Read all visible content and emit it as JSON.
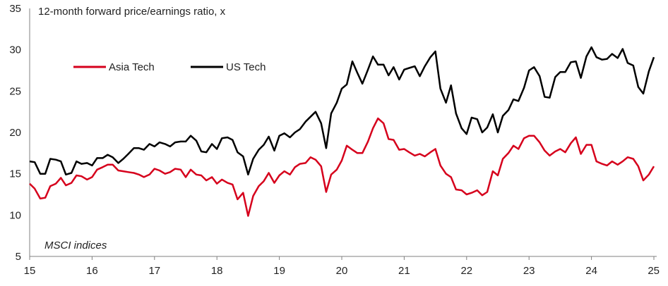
{
  "chart_data": {
    "type": "line",
    "title": "",
    "ylabel": "12-month forward price/earnings ratio, x",
    "xlabel": "",
    "note": "MSCI indices",
    "ylim": [
      5,
      35
    ],
    "yticks": [
      5,
      10,
      15,
      20,
      25,
      30,
      35
    ],
    "xlim": [
      2015,
      2025
    ],
    "xticks": [
      2015,
      2016,
      2017,
      2018,
      2019,
      2020,
      2021,
      2022,
      2023,
      2024,
      2025
    ],
    "xtick_labels": [
      "15",
      "16",
      "17",
      "18",
      "19",
      "20",
      "21",
      "22",
      "23",
      "24",
      "25"
    ],
    "grid": false,
    "legend_position": "top-left",
    "series": [
      {
        "name": "Asia Tech",
        "color": "#d6001c",
        "points": [
          [
            2015.0,
            13.8
          ],
          [
            2015.08,
            13.2
          ],
          [
            2015.17,
            12.0
          ],
          [
            2015.25,
            12.1
          ],
          [
            2015.33,
            13.5
          ],
          [
            2015.42,
            13.8
          ],
          [
            2015.5,
            14.5
          ],
          [
            2015.58,
            13.6
          ],
          [
            2015.67,
            13.9
          ],
          [
            2015.75,
            14.8
          ],
          [
            2015.83,
            14.7
          ],
          [
            2015.92,
            14.3
          ],
          [
            2016.0,
            14.6
          ],
          [
            2016.08,
            15.5
          ],
          [
            2016.17,
            15.8
          ],
          [
            2016.25,
            16.1
          ],
          [
            2016.33,
            16.1
          ],
          [
            2016.42,
            15.4
          ],
          [
            2016.5,
            15.3
          ],
          [
            2016.58,
            15.2
          ],
          [
            2016.67,
            15.1
          ],
          [
            2016.75,
            14.9
          ],
          [
            2016.83,
            14.6
          ],
          [
            2016.92,
            14.9
          ],
          [
            2017.0,
            15.6
          ],
          [
            2017.08,
            15.4
          ],
          [
            2017.17,
            15.0
          ],
          [
            2017.25,
            15.2
          ],
          [
            2017.33,
            15.6
          ],
          [
            2017.42,
            15.5
          ],
          [
            2017.5,
            14.6
          ],
          [
            2017.58,
            15.5
          ],
          [
            2017.67,
            14.9
          ],
          [
            2017.75,
            14.8
          ],
          [
            2017.83,
            14.2
          ],
          [
            2017.92,
            14.6
          ],
          [
            2018.0,
            13.8
          ],
          [
            2018.08,
            14.3
          ],
          [
            2018.17,
            13.9
          ],
          [
            2018.25,
            13.7
          ],
          [
            2018.33,
            11.9
          ],
          [
            2018.42,
            12.7
          ],
          [
            2018.5,
            9.9
          ],
          [
            2018.58,
            12.3
          ],
          [
            2018.67,
            13.5
          ],
          [
            2018.75,
            14.1
          ],
          [
            2018.83,
            15.1
          ],
          [
            2018.92,
            13.9
          ],
          [
            2019.0,
            14.8
          ],
          [
            2019.08,
            15.3
          ],
          [
            2019.17,
            14.9
          ],
          [
            2019.25,
            15.8
          ],
          [
            2019.33,
            16.2
          ],
          [
            2019.42,
            16.3
          ],
          [
            2019.5,
            17.0
          ],
          [
            2019.58,
            16.7
          ],
          [
            2019.67,
            15.9
          ],
          [
            2019.75,
            12.8
          ],
          [
            2019.83,
            14.9
          ],
          [
            2019.92,
            15.5
          ],
          [
            2020.0,
            16.6
          ],
          [
            2020.08,
            18.4
          ],
          [
            2020.17,
            17.9
          ],
          [
            2020.25,
            17.5
          ],
          [
            2020.33,
            17.5
          ],
          [
            2020.42,
            18.9
          ],
          [
            2020.5,
            20.5
          ],
          [
            2020.58,
            21.7
          ],
          [
            2020.67,
            21.1
          ],
          [
            2020.75,
            19.2
          ],
          [
            2020.83,
            19.1
          ],
          [
            2020.92,
            17.9
          ],
          [
            2021.0,
            18.0
          ],
          [
            2021.08,
            17.6
          ],
          [
            2021.17,
            17.2
          ],
          [
            2021.25,
            17.4
          ],
          [
            2021.33,
            17.1
          ],
          [
            2021.42,
            17.6
          ],
          [
            2021.5,
            18.0
          ],
          [
            2021.58,
            16.0
          ],
          [
            2021.67,
            15.0
          ],
          [
            2021.75,
            14.6
          ],
          [
            2021.83,
            13.1
          ],
          [
            2021.92,
            13.0
          ],
          [
            2022.0,
            12.5
          ],
          [
            2022.08,
            12.7
          ],
          [
            2022.17,
            13.0
          ],
          [
            2022.25,
            12.4
          ],
          [
            2022.33,
            12.8
          ],
          [
            2022.42,
            15.3
          ],
          [
            2022.5,
            14.8
          ],
          [
            2022.58,
            16.8
          ],
          [
            2022.67,
            17.5
          ],
          [
            2022.75,
            18.4
          ],
          [
            2022.83,
            18.0
          ],
          [
            2022.92,
            19.3
          ],
          [
            2023.0,
            19.6
          ],
          [
            2023.08,
            19.6
          ],
          [
            2023.17,
            18.8
          ],
          [
            2023.25,
            17.8
          ],
          [
            2023.33,
            17.2
          ],
          [
            2023.42,
            17.7
          ],
          [
            2023.5,
            18.0
          ],
          [
            2023.58,
            17.6
          ],
          [
            2023.67,
            18.7
          ],
          [
            2023.75,
            19.4
          ],
          [
            2023.83,
            17.4
          ],
          [
            2023.92,
            18.5
          ],
          [
            2024.0,
            18.5
          ],
          [
            2024.08,
            16.5
          ],
          [
            2024.17,
            16.2
          ],
          [
            2024.25,
            16.0
          ],
          [
            2024.33,
            16.5
          ],
          [
            2024.42,
            16.1
          ],
          [
            2024.5,
            16.5
          ],
          [
            2024.58,
            17.0
          ],
          [
            2024.67,
            16.8
          ],
          [
            2024.75,
            15.9
          ],
          [
            2024.83,
            14.2
          ],
          [
            2024.92,
            14.9
          ],
          [
            2025.0,
            15.9
          ]
        ]
      },
      {
        "name": "US Tech",
        "color": "#000000",
        "points": [
          [
            2015.0,
            16.5
          ],
          [
            2015.08,
            16.4
          ],
          [
            2015.17,
            15.0
          ],
          [
            2015.25,
            15.0
          ],
          [
            2015.33,
            16.8
          ],
          [
            2015.42,
            16.7
          ],
          [
            2015.5,
            16.5
          ],
          [
            2015.58,
            14.9
          ],
          [
            2015.67,
            15.1
          ],
          [
            2015.75,
            16.5
          ],
          [
            2015.83,
            16.2
          ],
          [
            2015.92,
            16.3
          ],
          [
            2016.0,
            16.0
          ],
          [
            2016.08,
            16.9
          ],
          [
            2016.17,
            16.9
          ],
          [
            2016.25,
            17.3
          ],
          [
            2016.33,
            17.0
          ],
          [
            2016.42,
            16.3
          ],
          [
            2016.5,
            16.8
          ],
          [
            2016.58,
            17.4
          ],
          [
            2016.67,
            18.1
          ],
          [
            2016.75,
            18.1
          ],
          [
            2016.83,
            17.9
          ],
          [
            2016.92,
            18.6
          ],
          [
            2017.0,
            18.3
          ],
          [
            2017.08,
            18.8
          ],
          [
            2017.17,
            18.6
          ],
          [
            2017.25,
            18.3
          ],
          [
            2017.33,
            18.8
          ],
          [
            2017.42,
            18.9
          ],
          [
            2017.5,
            18.9
          ],
          [
            2017.58,
            19.6
          ],
          [
            2017.67,
            19.0
          ],
          [
            2017.75,
            17.7
          ],
          [
            2017.83,
            17.6
          ],
          [
            2017.92,
            18.6
          ],
          [
            2018.0,
            18.0
          ],
          [
            2018.08,
            19.3
          ],
          [
            2018.17,
            19.4
          ],
          [
            2018.25,
            19.1
          ],
          [
            2018.33,
            17.6
          ],
          [
            2018.42,
            17.1
          ],
          [
            2018.5,
            14.9
          ],
          [
            2018.58,
            16.8
          ],
          [
            2018.67,
            17.9
          ],
          [
            2018.75,
            18.5
          ],
          [
            2018.83,
            19.5
          ],
          [
            2018.92,
            17.8
          ],
          [
            2019.0,
            19.6
          ],
          [
            2019.08,
            19.9
          ],
          [
            2019.17,
            19.4
          ],
          [
            2019.25,
            20.0
          ],
          [
            2019.33,
            20.4
          ],
          [
            2019.42,
            21.3
          ],
          [
            2019.5,
            21.9
          ],
          [
            2019.58,
            22.5
          ],
          [
            2019.67,
            21.1
          ],
          [
            2019.75,
            18.1
          ],
          [
            2019.83,
            22.3
          ],
          [
            2019.92,
            23.6
          ],
          [
            2020.0,
            25.3
          ],
          [
            2020.08,
            25.8
          ],
          [
            2020.17,
            28.6
          ],
          [
            2020.25,
            27.2
          ],
          [
            2020.33,
            25.9
          ],
          [
            2020.42,
            27.6
          ],
          [
            2020.5,
            29.2
          ],
          [
            2020.58,
            28.2
          ],
          [
            2020.67,
            28.2
          ],
          [
            2020.75,
            26.9
          ],
          [
            2020.83,
            27.9
          ],
          [
            2020.92,
            26.4
          ],
          [
            2021.0,
            27.6
          ],
          [
            2021.08,
            27.8
          ],
          [
            2021.17,
            28.0
          ],
          [
            2021.25,
            26.8
          ],
          [
            2021.33,
            28.0
          ],
          [
            2021.42,
            29.1
          ],
          [
            2021.5,
            29.8
          ],
          [
            2021.58,
            25.3
          ],
          [
            2021.67,
            23.6
          ],
          [
            2021.75,
            25.7
          ],
          [
            2021.83,
            22.3
          ],
          [
            2021.92,
            20.5
          ],
          [
            2022.0,
            19.8
          ],
          [
            2022.08,
            21.8
          ],
          [
            2022.17,
            21.6
          ],
          [
            2022.25,
            20.0
          ],
          [
            2022.33,
            20.6
          ],
          [
            2022.42,
            22.2
          ],
          [
            2022.5,
            20.0
          ],
          [
            2022.58,
            22.0
          ],
          [
            2022.67,
            22.7
          ],
          [
            2022.75,
            24.0
          ],
          [
            2022.83,
            23.8
          ],
          [
            2022.92,
            25.4
          ],
          [
            2023.0,
            27.5
          ],
          [
            2023.08,
            27.9
          ],
          [
            2023.17,
            26.8
          ],
          [
            2023.25,
            24.3
          ],
          [
            2023.33,
            24.2
          ],
          [
            2023.42,
            26.7
          ],
          [
            2023.5,
            27.3
          ],
          [
            2023.58,
            27.3
          ],
          [
            2023.67,
            28.5
          ],
          [
            2023.75,
            28.6
          ],
          [
            2023.83,
            26.6
          ],
          [
            2023.92,
            29.2
          ],
          [
            2024.0,
            30.3
          ],
          [
            2024.08,
            29.1
          ],
          [
            2024.17,
            28.8
          ],
          [
            2024.25,
            28.9
          ],
          [
            2024.33,
            29.5
          ],
          [
            2024.42,
            29.0
          ],
          [
            2024.5,
            30.1
          ],
          [
            2024.58,
            28.4
          ],
          [
            2024.67,
            28.1
          ],
          [
            2024.75,
            25.5
          ],
          [
            2024.83,
            24.7
          ],
          [
            2024.92,
            27.4
          ],
          [
            2025.0,
            29.1
          ]
        ]
      }
    ]
  }
}
